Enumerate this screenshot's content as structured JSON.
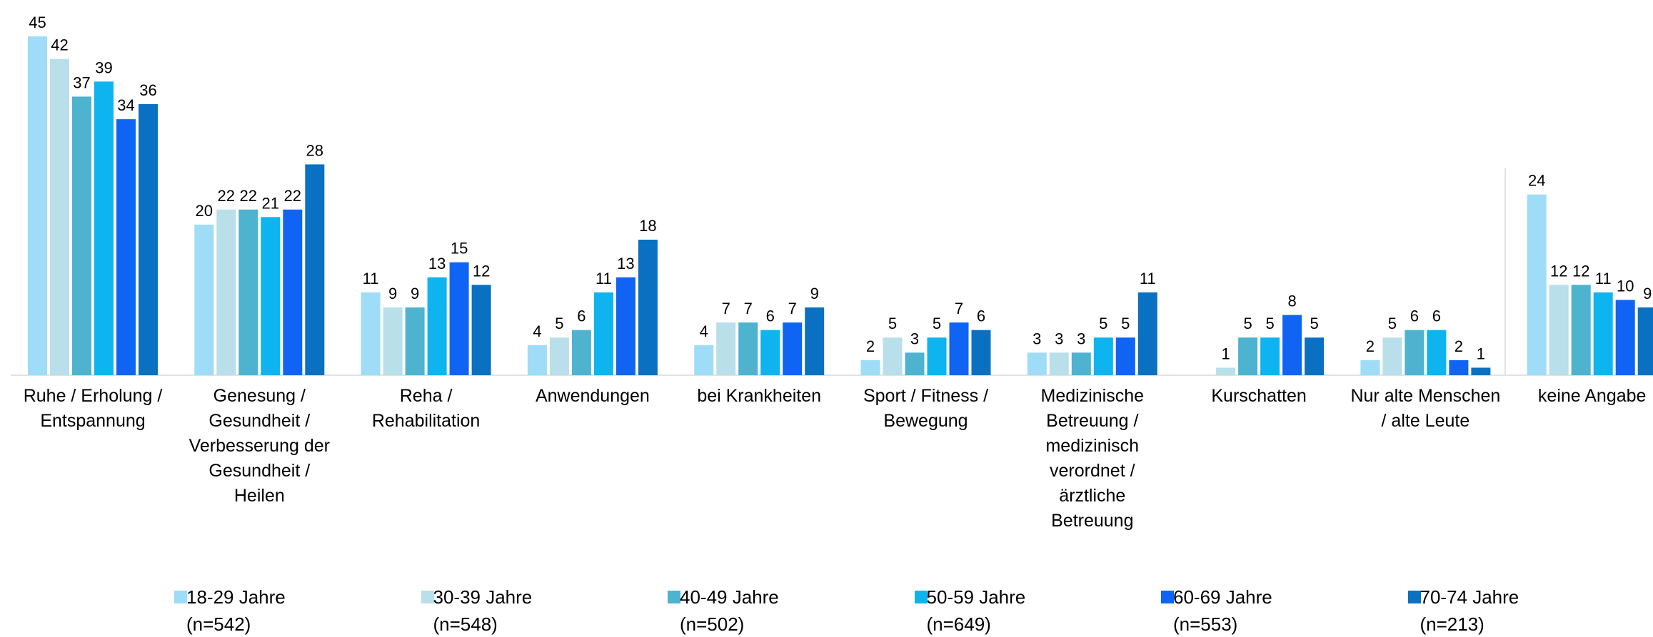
{
  "chart_data": {
    "type": "bar",
    "categories": [
      "Ruhe / Erholung / Entspannung",
      "Genesung / Gesundheit / Verbesserung der Gesundheit / Heilen",
      "Reha / Rehabilitation",
      "Anwendungen",
      "bei Krankheiten",
      "Sport / Fitness / Bewegung",
      "Medizinische Betreuung / medizinisch verordnet / ärztliche Betreuung",
      "Kurschatten",
      "Nur alte Menschen / alte Leute",
      "keine Angabe"
    ],
    "series": [
      {
        "name": "18-29 Jahre\n(n=542)",
        "color": "#9fdcf7",
        "values": [
          45,
          20,
          11,
          4,
          4,
          2,
          3,
          null,
          2,
          24
        ]
      },
      {
        "name": "30-39 Jahre\n(n=548)",
        "color": "#b8dfea",
        "values": [
          42,
          22,
          9,
          5,
          7,
          5,
          3,
          1,
          5,
          12
        ]
      },
      {
        "name": "40-49 Jahre\n(n=502)",
        "color": "#4db3cf",
        "values": [
          37,
          22,
          9,
          6,
          7,
          3,
          3,
          5,
          6,
          12
        ]
      },
      {
        "name": "50-59 Jahre\n(n=649)",
        "color": "#0db4ef",
        "values": [
          39,
          21,
          13,
          11,
          6,
          5,
          5,
          5,
          6,
          11
        ]
      },
      {
        "name": "60-69 Jahre\n(n=553)",
        "color": "#0f64f4",
        "values": [
          34,
          22,
          15,
          13,
          7,
          7,
          5,
          8,
          2,
          10
        ]
      },
      {
        "name": "70-74 Jahre\n(n=213)",
        "color": "#0a70c2",
        "values": [
          36,
          28,
          12,
          18,
          9,
          6,
          11,
          5,
          1,
          9
        ]
      }
    ]
  }
}
